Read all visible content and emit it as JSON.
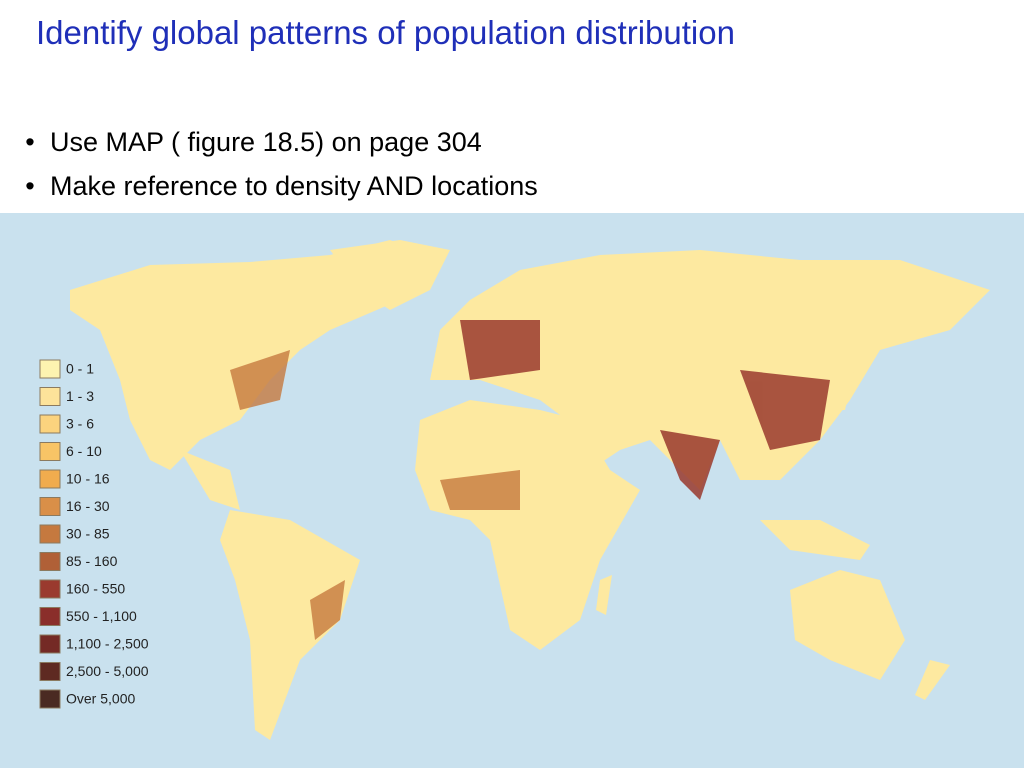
{
  "header": {
    "title": "Identify global patterns of population distribution"
  },
  "bullets": [
    "Use MAP ( figure 18.5) on page 304",
    "Make reference to density AND locations"
  ],
  "legend": [
    {
      "label": "0 - 1",
      "color": "#fdf3b0"
    },
    {
      "label": "1 - 3",
      "color": "#fde39a"
    },
    {
      "label": "3 - 6",
      "color": "#fbd37e"
    },
    {
      "label": "6 - 10",
      "color": "#f8c466"
    },
    {
      "label": "10 - 16",
      "color": "#f0ac4e"
    },
    {
      "label": "16 - 30",
      "color": "#d98f48"
    },
    {
      "label": "30 - 85",
      "color": "#c5793f"
    },
    {
      "label": "85 - 160",
      "color": "#b06037"
    },
    {
      "label": "160 - 550",
      "color": "#9a3a2e"
    },
    {
      "label": "550 - 1,100",
      "color": "#8a2e2a"
    },
    {
      "label": "1,100 - 2,500",
      "color": "#742a25"
    },
    {
      "label": "2,500 - 5,000",
      "color": "#5e2a22"
    },
    {
      "label": "Over 5,000",
      "color": "#4a2a22"
    }
  ]
}
